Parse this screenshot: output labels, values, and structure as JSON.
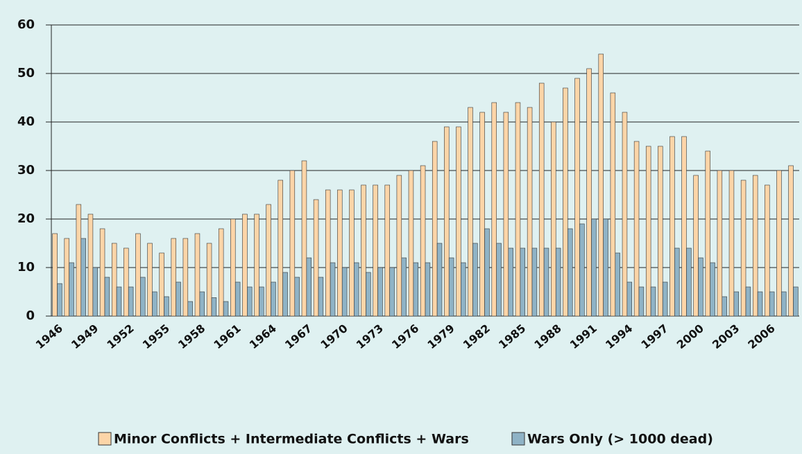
{
  "chart_data": {
    "type": "bar",
    "categories": [
      "1946",
      null,
      null,
      "1949",
      null,
      null,
      "1952",
      null,
      null,
      "1955",
      null,
      null,
      "1958",
      null,
      null,
      "1961",
      null,
      null,
      "1964",
      null,
      null,
      "1967",
      null,
      null,
      "1970",
      null,
      null,
      "1973",
      null,
      null,
      "1976",
      null,
      null,
      "1979",
      null,
      null,
      "1982",
      null,
      null,
      "1985",
      null,
      null,
      "1988",
      null,
      null,
      "1991",
      null,
      null,
      "1994",
      null,
      null,
      "1997",
      null,
      null,
      "2000",
      null,
      null,
      "2003",
      null,
      null,
      "2006",
      null,
      null
    ],
    "series": [
      {
        "name": "Minor Conflicts + Intermediate Conflicts + Wars",
        "color": "#fcd5a8",
        "values": [
          17,
          16,
          23,
          21,
          18,
          15,
          14,
          17,
          15,
          13,
          16,
          16,
          17,
          15,
          18,
          20,
          21,
          21,
          23,
          28,
          30,
          32,
          24,
          26,
          26,
          26,
          27,
          27,
          27,
          29,
          30,
          31,
          36,
          39,
          39,
          43,
          42,
          44,
          42,
          44,
          43,
          48,
          40,
          47,
          49,
          51,
          54,
          46,
          42,
          36,
          35,
          35,
          37,
          37,
          29,
          34,
          30,
          30,
          28,
          29,
          27,
          30,
          31
        ]
      },
      {
        "name": "Wars Only (> 1000 dead)",
        "color": "#8fb3c6",
        "values": [
          6.7,
          11,
          16,
          10,
          8,
          6,
          6,
          8,
          5,
          4,
          7,
          3,
          5,
          3.8,
          3,
          7,
          6,
          6,
          7,
          9,
          8,
          12,
          8,
          11,
          10,
          11,
          9,
          10,
          10,
          12,
          11,
          11,
          15,
          12,
          11,
          15,
          18,
          15,
          14,
          14,
          14,
          14,
          14,
          18,
          19,
          20,
          20,
          13,
          7,
          6,
          6,
          7,
          14,
          14,
          12,
          11,
          4,
          5,
          6,
          5,
          5,
          5,
          6
        ]
      }
    ],
    "ylim": [
      0,
      60
    ],
    "yticks": [
      0,
      10,
      20,
      30,
      40,
      50,
      60
    ],
    "grid": true
  }
}
